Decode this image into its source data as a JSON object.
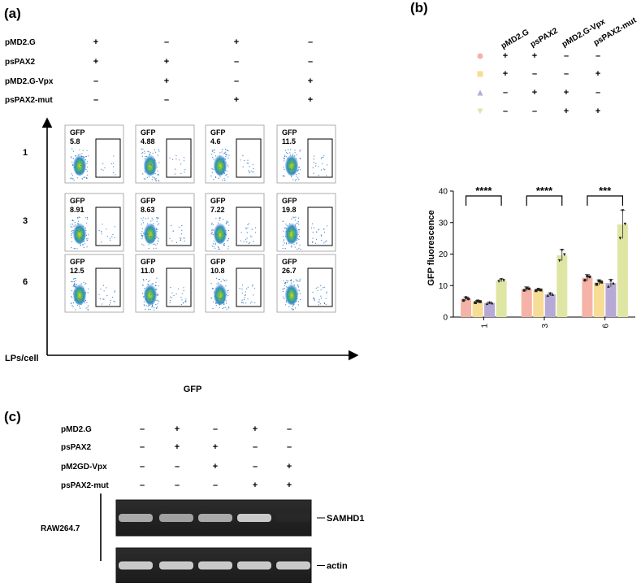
{
  "panel_a": {
    "label": "(a)",
    "conditions": [
      {
        "name": "pMD2.G",
        "signs": [
          "+",
          "–",
          "+",
          "–"
        ]
      },
      {
        "name": "psPAX2",
        "signs": [
          "+",
          "+",
          "–",
          "–"
        ]
      },
      {
        "name": "pMD2.G-Vpx",
        "signs": [
          "–",
          "+",
          "–",
          "+"
        ]
      },
      {
        "name": "psPAX2-mut",
        "signs": [
          "–",
          "–",
          "+",
          "+"
        ]
      }
    ],
    "rows": [
      "1",
      "3",
      "6"
    ],
    "gate_label": "GFP",
    "gfp_values": [
      [
        "5.8",
        "4.88",
        "4.6",
        "11.5"
      ],
      [
        "8.91",
        "8.63",
        "7.22",
        "19.8"
      ],
      [
        "12.5",
        "11.0",
        "10.8",
        "26.7"
      ]
    ],
    "y_axis_label": "LPs/cell",
    "x_axis_label": "GFP"
  },
  "panel_b": {
    "label": "(b)",
    "legend_columns": [
      "pMD2.G",
      "psPAX2",
      "pMD2.G-Vpx",
      "psPAX2-mut"
    ],
    "legend_rows": [
      {
        "marker": "circle",
        "color": "#f4b3a6",
        "signs": [
          "+",
          "+",
          "–",
          "–"
        ]
      },
      {
        "marker": "square",
        "color": "#f7dc95",
        "signs": [
          "+",
          "–",
          "–",
          "+"
        ]
      },
      {
        "marker": "triangle-up",
        "color": "#b7a9d6",
        "signs": [
          "–",
          "+",
          "+",
          "–"
        ]
      },
      {
        "marker": "triangle-down",
        "color": "#dfe6a4",
        "signs": [
          "–",
          "–",
          "+",
          "+"
        ]
      }
    ],
    "significance": [
      "****",
      "****",
      "***"
    ]
  },
  "chart_data": {
    "type": "bar",
    "title": "",
    "xlabel": "",
    "ylabel": "GFP fluorescence",
    "ylim": [
      0,
      40
    ],
    "yticks": [
      0,
      10,
      20,
      30,
      40
    ],
    "categories": [
      "1",
      "3",
      "6"
    ],
    "series": [
      {
        "color": "#f4b3a6",
        "values": [
          5.8,
          8.9,
          12.5
        ],
        "errors": [
          0.6,
          0.7,
          1.0
        ],
        "points": [
          [
            5.3,
            6.2,
            5.8
          ],
          [
            8.5,
            9.2,
            9.0
          ],
          [
            11.7,
            13.0,
            12.8
          ]
        ]
      },
      {
        "color": "#f7dc95",
        "values": [
          4.9,
          8.6,
          11.0
        ],
        "errors": [
          0.4,
          0.3,
          0.8
        ],
        "points": [
          [
            4.6,
            5.1,
            4.9
          ],
          [
            8.4,
            8.8,
            8.6
          ],
          [
            10.4,
            11.5,
            11.1
          ]
        ]
      },
      {
        "color": "#b7a9d6",
        "values": [
          4.5,
          7.2,
          10.8
        ],
        "errors": [
          0.3,
          0.5,
          1.2
        ],
        "points": [
          [
            4.3,
            4.7,
            4.5
          ],
          [
            6.9,
            7.6,
            7.2
          ],
          [
            9.8,
            11.8,
            10.8
          ]
        ]
      },
      {
        "color": "#dfe6a4",
        "values": [
          11.6,
          19.6,
          29.4
        ],
        "errors": [
          0.5,
          1.8,
          4.5
        ],
        "points": [
          [
            11.3,
            11.9,
            11.6
          ],
          [
            17.9,
            21.2,
            19.8
          ],
          [
            25.0,
            33.8,
            29.5
          ]
        ]
      }
    ]
  },
  "panel_c": {
    "label": "(c)",
    "conditions": [
      {
        "name": "pMD2.G",
        "signs": [
          "–",
          "+",
          "–",
          "+",
          "–"
        ]
      },
      {
        "name": "psPAX2",
        "signs": [
          "–",
          "+",
          "+",
          "–",
          "–"
        ]
      },
      {
        "name": "pM2GD-Vpx",
        "signs": [
          "–",
          "–",
          "+",
          "–",
          "+"
        ]
      },
      {
        "name": "psPAX2-mut",
        "signs": [
          "–",
          "–",
          "–",
          "+",
          "+"
        ]
      }
    ],
    "cell_line": "RAW264.7",
    "bands": [
      {
        "name": "SAMHD1",
        "intensities": [
          0.85,
          0.82,
          0.85,
          0.95,
          0.15
        ]
      },
      {
        "name": "actin",
        "intensities": [
          0.95,
          0.95,
          0.95,
          0.95,
          0.95
        ]
      }
    ]
  }
}
